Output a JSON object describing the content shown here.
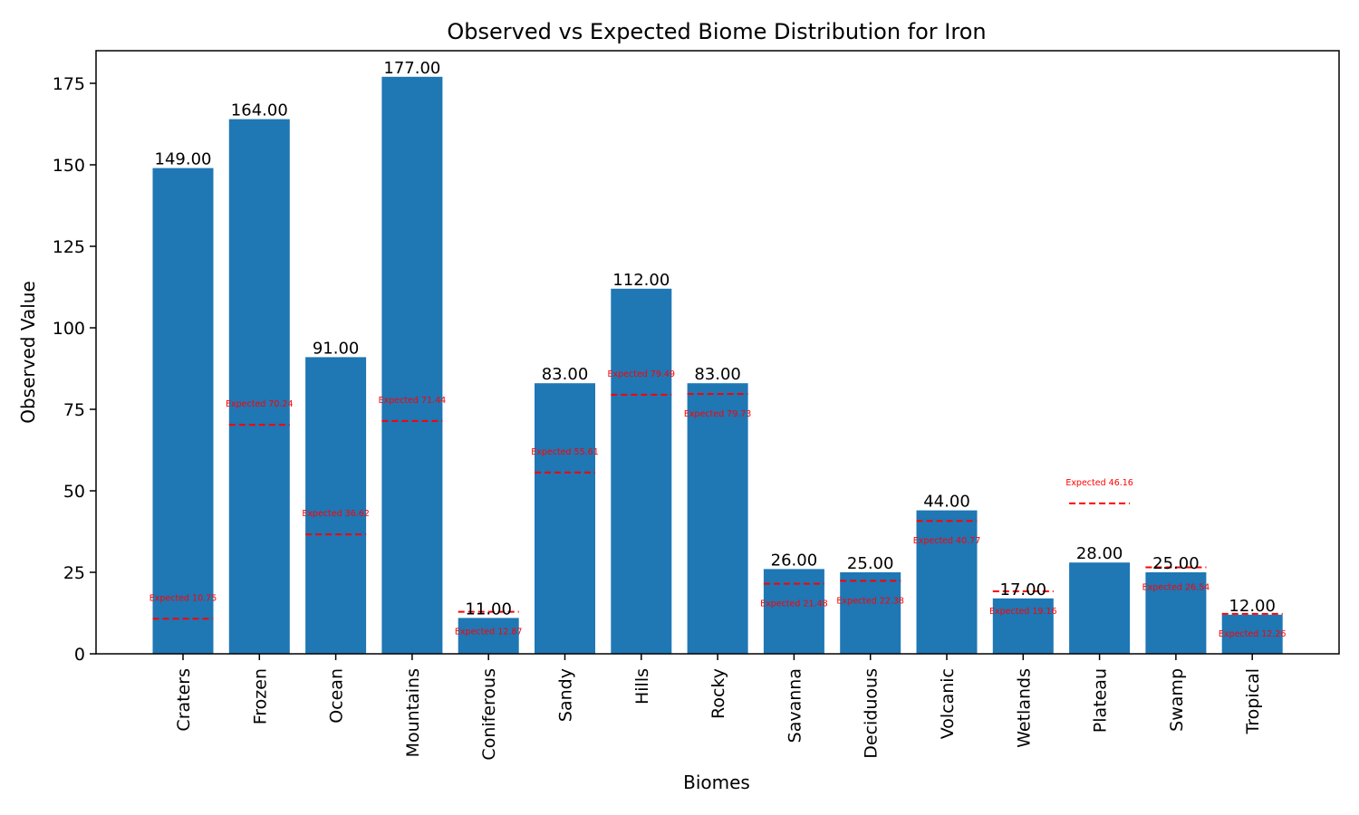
{
  "chart_data": {
    "type": "bar",
    "title": "Observed vs Expected Biome Distribution for Iron",
    "xlabel": "Biomes",
    "ylabel": "Observed Value",
    "ylim": [
      0,
      185
    ],
    "yticks": [
      0,
      25,
      50,
      75,
      100,
      125,
      150,
      175
    ],
    "grid": false,
    "categories": [
      "Craters",
      "Frozen",
      "Ocean",
      "Mountains",
      "Coniferous",
      "Sandy",
      "Hills",
      "Rocky",
      "Savanna",
      "Deciduous",
      "Volcanic",
      "Wetlands",
      "Plateau",
      "Swamp",
      "Tropical"
    ],
    "series": [
      {
        "values": [
          149.0,
          164.0,
          91.0,
          177.0,
          11.0,
          83.0,
          112.0,
          83.0,
          26.0,
          25.0,
          44.0,
          17.0,
          28.0,
          25.0,
          12.0
        ],
        "labels": [
          "149.00",
          "164.00",
          "91.00",
          "177.00",
          "11.00",
          "83.00",
          "112.00",
          "83.00",
          "26.00",
          "25.00",
          "44.00",
          "17.00",
          "28.00",
          "25.00",
          "12.00"
        ],
        "color": "#1f77b4"
      },
      {
        "values": [
          10.75,
          70.24,
          36.62,
          71.44,
          12.87,
          55.61,
          79.49,
          79.73,
          21.48,
          22.38,
          40.77,
          19.16,
          46.16,
          26.54,
          12.26
        ],
        "labels": [
          "Expected 10.75",
          "Expected 70.24",
          "Expected 36.62",
          "Expected 71.44",
          "Expected 12.87",
          "Expected 55.61",
          "Expected 79.49",
          "Expected 79.73",
          "Expected 21.48",
          "Expected 22.38",
          "Expected 40.77",
          "Expected 19.16",
          "Expected 46.16",
          "Expected 26.54",
          "Expected 12.26"
        ],
        "label_position": [
          "above",
          "above",
          "above",
          "above",
          "below",
          "above",
          "above",
          "below",
          "below",
          "below",
          "below",
          "below",
          "above",
          "below",
          "below"
        ],
        "color": "#ff0000",
        "style": "dashed"
      }
    ]
  }
}
